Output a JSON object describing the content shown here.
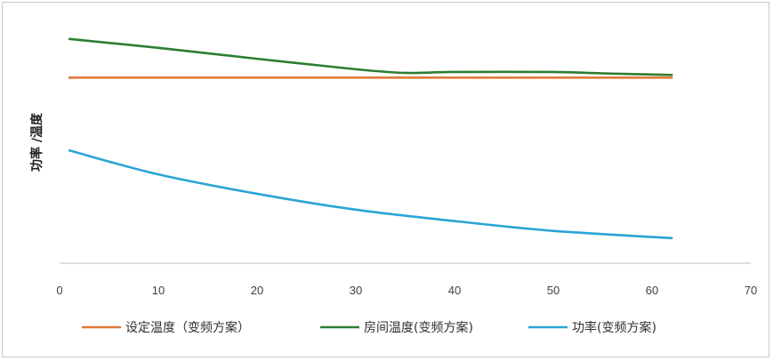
{
  "chart_data": {
    "type": "line",
    "title": "",
    "xlabel": "",
    "ylabel": "功率 /温度",
    "xlim": [
      0,
      70
    ],
    "x_ticks": [
      "0",
      "10",
      "20",
      "30",
      "40",
      "50",
      "60",
      "70"
    ],
    "y_axis_shown": false,
    "ylim": [
      0,
      100
    ],
    "grid": false,
    "legend_position": "bottom",
    "series": [
      {
        "name": "设定温度（变频方案）",
        "color": "#e07b39",
        "x": [
          1,
          62
        ],
        "values": [
          81.5,
          81.5
        ]
      },
      {
        "name": "房间温度(变频方案)",
        "color": "#2e7d32",
        "x": [
          1,
          10,
          20,
          30,
          35,
          40,
          50,
          55,
          62
        ],
        "values": [
          98.5,
          94.6,
          89.8,
          85.2,
          83.6,
          84.0,
          84.0,
          83.4,
          82.7
        ]
      },
      {
        "name": "功率(变频方案)",
        "color": "#2aa4d6",
        "x": [
          1,
          10,
          20,
          30,
          40,
          50,
          62
        ],
        "values": [
          49.5,
          39.0,
          30.5,
          23.5,
          18.5,
          14.2,
          11.0
        ]
      }
    ]
  }
}
